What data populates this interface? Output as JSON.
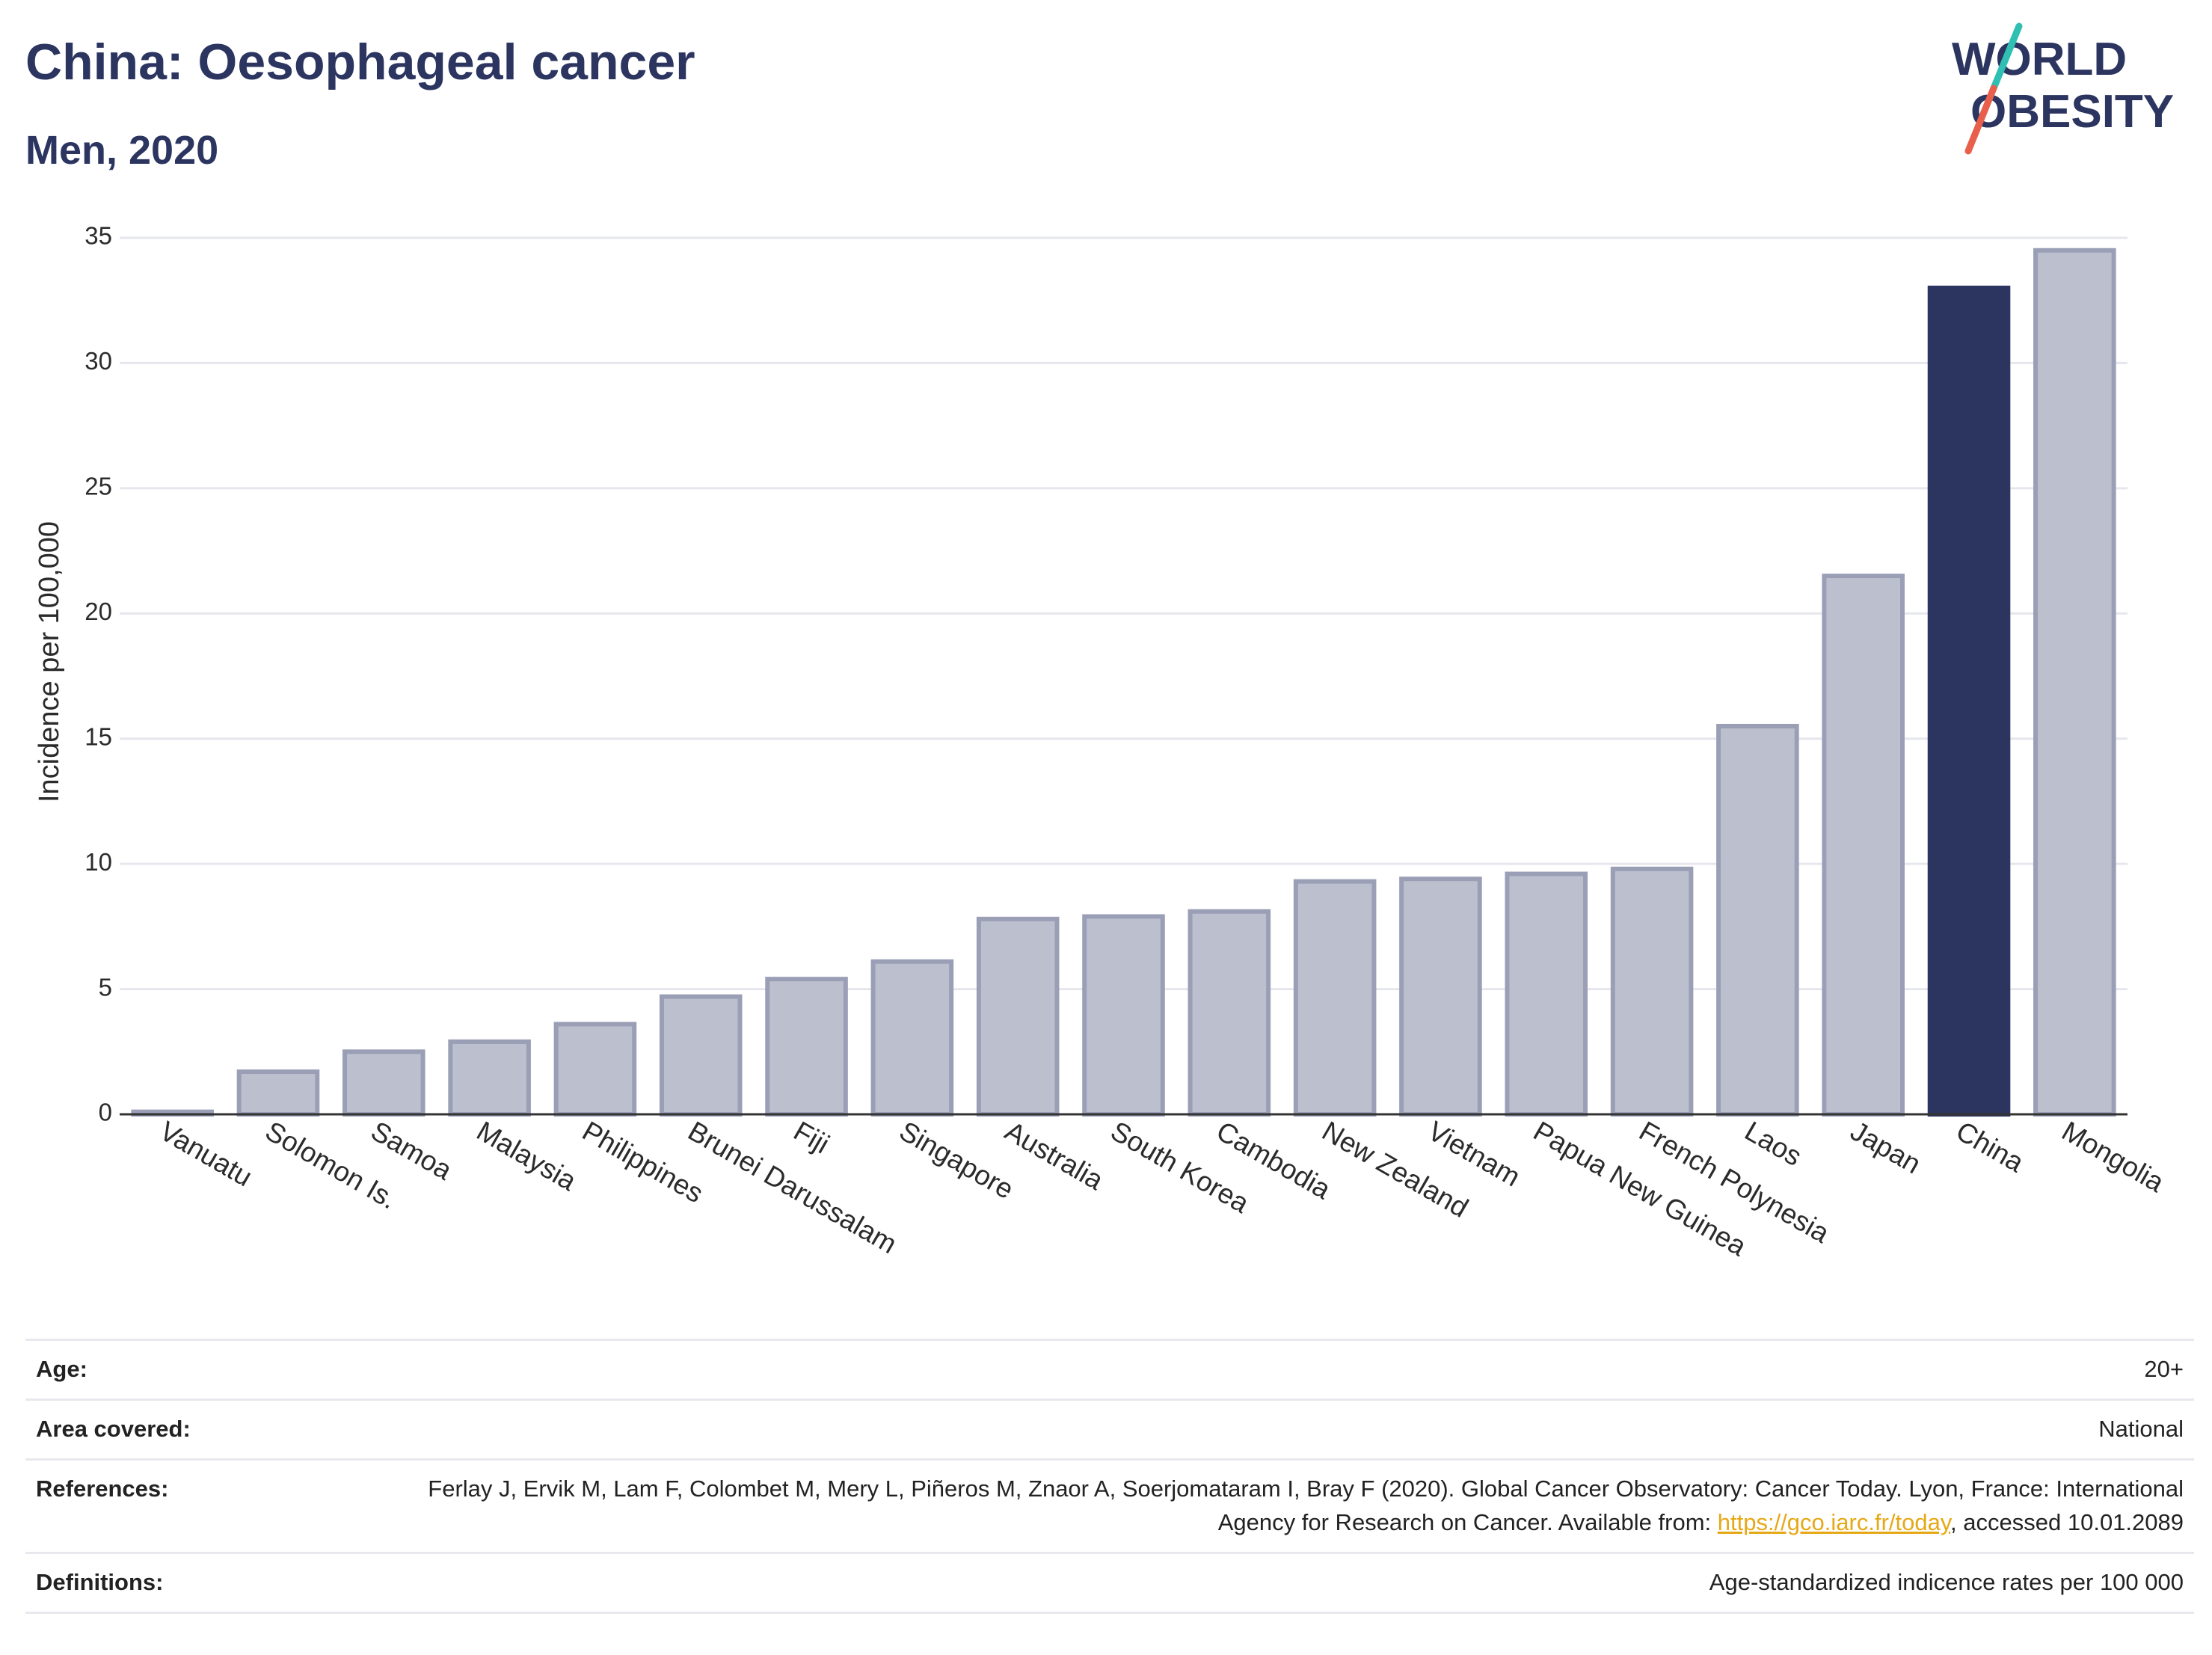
{
  "header": {
    "title": "China: Oesophageal cancer",
    "subtitle": "Men, 2020"
  },
  "logo": {
    "line1": "WORLD",
    "line2": "OBESITY"
  },
  "chart_data": {
    "type": "bar",
    "ylabel": "Incidence per 100,000",
    "xlabel": "",
    "ylim": [
      0,
      35
    ],
    "yticks": [
      0,
      5,
      10,
      15,
      20,
      25,
      30,
      35
    ],
    "grid": true,
    "highlight": "China",
    "colors": {
      "default": "#bcc0ce",
      "default_border": "#9a9fb6",
      "highlight": "#2b3560"
    },
    "categories": [
      "Vanuatu",
      "Solomon Is.",
      "Samoa",
      "Malaysia",
      "Philippines",
      "Brunei Darussalam",
      "Fiji",
      "Singapore",
      "Australia",
      "South Korea",
      "Cambodia",
      "New Zealand",
      "Vietnam",
      "Papua New Guinea",
      "French Polynesia",
      "Laos",
      "Japan",
      "China",
      "Mongolia"
    ],
    "values": [
      0.1,
      1.7,
      2.5,
      2.9,
      3.6,
      4.7,
      5.4,
      6.1,
      7.8,
      7.9,
      8.1,
      9.3,
      9.4,
      9.6,
      9.8,
      15.5,
      21.5,
      33.0,
      34.5
    ]
  },
  "meta": {
    "age_label": "Age:",
    "age_value": "20+",
    "area_label": "Area covered:",
    "area_value": "National",
    "refs_label": "References:",
    "refs_text": "Ferlay J, Ervik M, Lam F, Colombet M, Mery L, Piñeros M, Znaor A, Soerjomataram I, Bray F (2020). Global Cancer Observatory: Cancer Today. Lyon, France: International Agency for Research on Cancer. Available from: ",
    "refs_link": "https://gco.iarc.fr/today",
    "refs_tail": ", accessed 10.01.2089",
    "defs_label": "Definitions:",
    "defs_value": "Age-standardized indicence rates per 100 000"
  }
}
